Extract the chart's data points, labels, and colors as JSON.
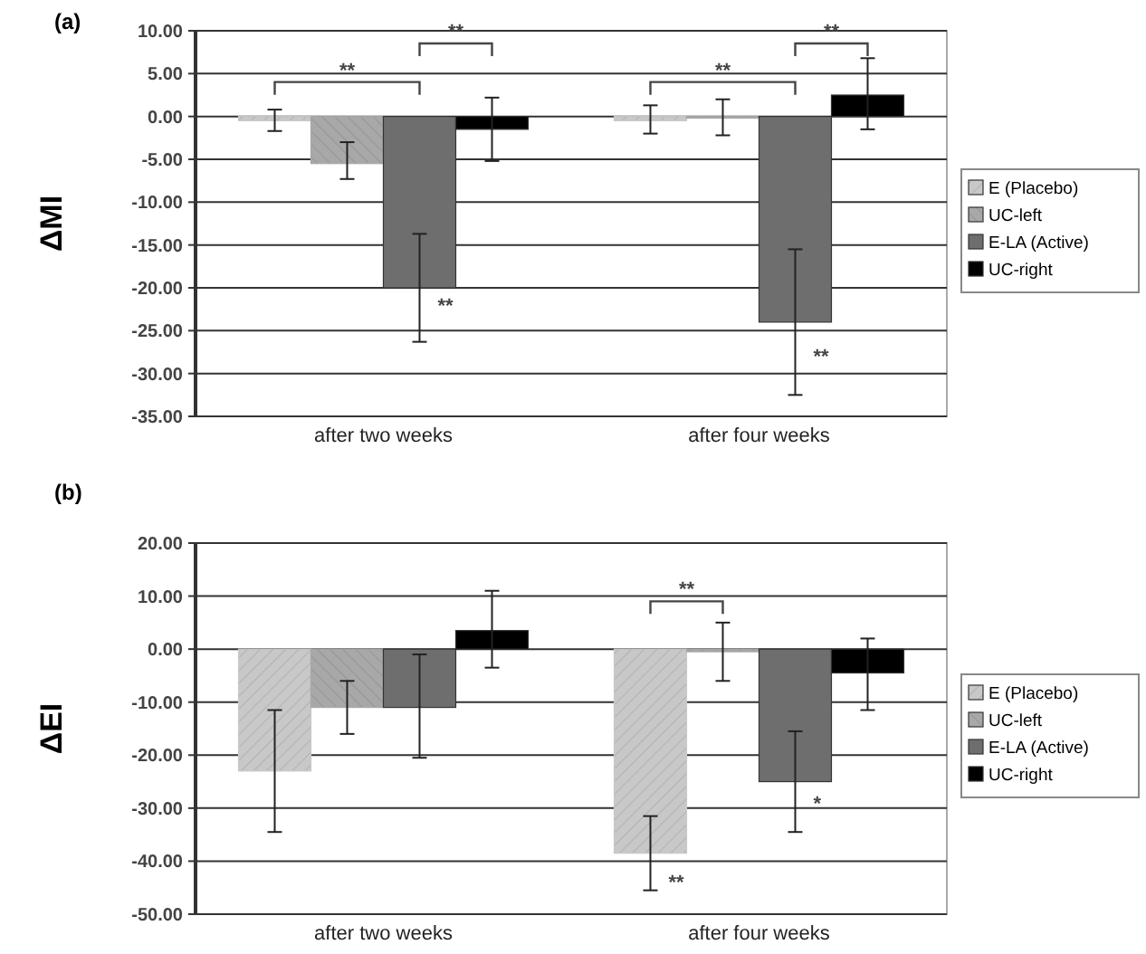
{
  "chart_data": [
    {
      "type": "bar",
      "title": "(a)",
      "ylabel": "ΔMI",
      "categories": [
        "after two weeks",
        "after four weeks"
      ],
      "ylim": [
        -35,
        10
      ],
      "yticks": [
        {
          "value": 10,
          "label": "10.00"
        },
        {
          "value": 5,
          "label": "5.00"
        },
        {
          "value": 0,
          "label": "0.00"
        },
        {
          "value": -5,
          "label": "-5.00"
        },
        {
          "value": -10,
          "label": "-10.00"
        },
        {
          "value": -15,
          "label": "-15.00"
        },
        {
          "value": -20,
          "label": "-20.00"
        },
        {
          "value": -25,
          "label": "-25.00"
        },
        {
          "value": -30,
          "label": "-30.00"
        },
        {
          "value": -35,
          "label": "-35.00"
        }
      ],
      "grid": "y",
      "legend": "right",
      "series": [
        {
          "name": "E (Placebo)",
          "color": "#c8c8c8",
          "values": [
            -0.5,
            -0.5
          ],
          "errors": [
            [
              -1.7,
              0.8
            ],
            [
              -2,
              1.3
            ]
          ]
        },
        {
          "name": "UC-left",
          "color": "#a8a8a8",
          "values": [
            -5.5,
            -0.2
          ],
          "errors": [
            [
              -7.3,
              -3
            ],
            [
              -2.2,
              2
            ]
          ]
        },
        {
          "name": "E-LA (Active)",
          "color": "#6e6e6e",
          "values": [
            -20,
            -24
          ],
          "errors": [
            [
              -26.3,
              -13.7
            ],
            [
              -32.5,
              -15.5
            ]
          ]
        },
        {
          "name": "UC-right",
          "color": "#000000",
          "values": [
            -1.5,
            2.5
          ],
          "errors": [
            [
              -5.2,
              2.2
            ],
            [
              -1.5,
              6.8
            ]
          ]
        }
      ],
      "annotations": [
        "**",
        "**",
        "**",
        "**",
        "**",
        "**"
      ]
    },
    {
      "type": "bar",
      "title": "(b)",
      "ylabel": "ΔEI",
      "categories": [
        "after two weeks",
        "after four weeks"
      ],
      "ylim": [
        -50,
        20
      ],
      "yticks": [
        {
          "value": 20,
          "label": "20.00"
        },
        {
          "value": 10,
          "label": "10.00"
        },
        {
          "value": 0,
          "label": "0.00"
        },
        {
          "value": -10,
          "label": "-10.00"
        },
        {
          "value": -20,
          "label": "-20.00"
        },
        {
          "value": -30,
          "label": "-30.00"
        },
        {
          "value": -40,
          "label": "-40.00"
        },
        {
          "value": -50,
          "label": "-50.00"
        }
      ],
      "grid": "y",
      "legend": "right",
      "series": [
        {
          "name": "E (Placebo)",
          "color": "#c8c8c8",
          "values": [
            -23,
            -38.5
          ],
          "errors": [
            [
              -34.5,
              -11.5
            ],
            [
              -45.5,
              -31.5
            ]
          ]
        },
        {
          "name": "UC-left",
          "color": "#a8a8a8",
          "values": [
            -11,
            -0.5
          ],
          "errors": [
            [
              -16,
              -6
            ],
            [
              -6,
              5
            ]
          ]
        },
        {
          "name": "E-LA (Active)",
          "color": "#6e6e6e",
          "values": [
            -11,
            -25
          ],
          "errors": [
            [
              -20.5,
              -1
            ],
            [
              -34.5,
              -15.5
            ]
          ]
        },
        {
          "name": "UC-right",
          "color": "#000000",
          "values": [
            3.5,
            -4.5
          ],
          "errors": [
            [
              -3.5,
              11
            ],
            [
              -11.5,
              2
            ]
          ]
        }
      ],
      "annotations": [
        "**",
        "**",
        "*"
      ]
    }
  ]
}
